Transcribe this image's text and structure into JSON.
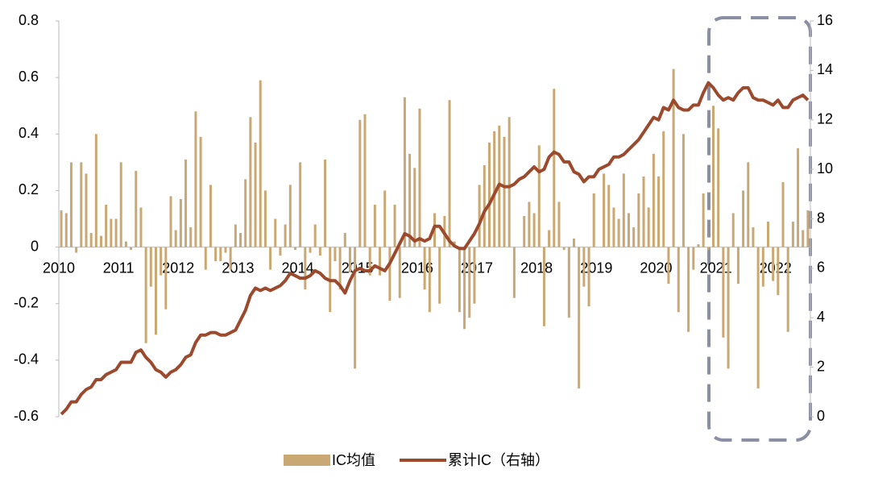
{
  "chart_data": {
    "type": "bar",
    "categories": [
      "2010",
      null,
      null,
      null,
      null,
      null,
      null,
      null,
      null,
      null,
      null,
      null,
      "2011",
      null,
      null,
      null,
      null,
      null,
      null,
      null,
      null,
      null,
      null,
      null,
      "2012",
      null,
      null,
      null,
      null,
      null,
      null,
      null,
      null,
      null,
      null,
      null,
      "2013",
      null,
      null,
      null,
      null,
      null,
      null,
      null,
      null,
      null,
      null,
      null,
      "2014",
      null,
      null,
      null,
      null,
      null,
      null,
      null,
      null,
      null,
      null,
      null,
      "2015",
      null,
      null,
      null,
      null,
      null,
      null,
      null,
      null,
      null,
      null,
      null,
      "2016",
      null,
      null,
      null,
      null,
      null,
      null,
      null,
      null,
      null,
      null,
      null,
      "2017",
      null,
      null,
      null,
      null,
      null,
      null,
      null,
      null,
      null,
      null,
      null,
      "2018",
      null,
      null,
      null,
      null,
      null,
      null,
      null,
      null,
      null,
      null,
      null,
      "2019",
      null,
      null,
      null,
      null,
      null,
      null,
      null,
      null,
      null,
      null,
      null,
      "2020",
      null,
      null,
      null,
      null,
      null,
      null,
      null,
      null,
      null,
      null,
      null,
      "2021",
      null,
      null,
      null,
      null,
      null,
      null,
      null,
      null,
      null,
      null,
      null,
      "2022",
      null,
      null,
      null,
      null,
      null,
      null
    ],
    "series": [
      {
        "name": "IC均值",
        "type": "bar",
        "color": "#c9a873",
        "values": [
          0.13,
          0.12,
          0.3,
          -0.02,
          0.3,
          0.26,
          0.05,
          0.4,
          0.04,
          0.15,
          0.1,
          0.1,
          0.3,
          0.02,
          -0.01,
          0.27,
          0.14,
          -0.34,
          -0.14,
          -0.31,
          -0.1,
          -0.22,
          0.18,
          0.06,
          0.17,
          0.31,
          0.07,
          0.48,
          0.39,
          -0.08,
          0.22,
          -0.05,
          -0.05,
          -0.02,
          -0.08,
          0.08,
          0.05,
          0.24,
          0.46,
          0.37,
          0.59,
          0.2,
          -0.08,
          0.1,
          -0.03,
          0.08,
          0.22,
          -0.01,
          0.3,
          -0.15,
          -0.02,
          0.08,
          -0.03,
          0.31,
          -0.23,
          -0.05,
          -0.15,
          0.05,
          -0.09,
          -0.43,
          0.45,
          0.47,
          -0.1,
          0.15,
          -0.1,
          0.2,
          -0.19,
          0.15,
          -0.18,
          0.53,
          0.33,
          0.28,
          0.49,
          -0.15,
          -0.23,
          0.12,
          -0.2,
          0.11,
          0.52,
          0.02,
          -0.23,
          -0.29,
          -0.25,
          -0.2,
          0.22,
          0.29,
          0.37,
          0.41,
          0.43,
          0.39,
          0.46,
          -0.18,
          0.0,
          0.11,
          0.16,
          0.12,
          0.36,
          -0.28,
          0.06,
          0.56,
          0.16,
          -0.01,
          -0.25,
          0.03,
          -0.5,
          -0.14,
          -0.21,
          0.19,
          0.0,
          0.26,
          0.22,
          0.14,
          0.1,
          0.26,
          0.12,
          0.07,
          0.19,
          0.25,
          0.14,
          0.33,
          0.25,
          0.41,
          -0.13,
          0.63,
          -0.23,
          0.4,
          -0.3,
          -0.08,
          0.01,
          0.19,
          -0.01,
          0.5,
          0.42,
          -0.32,
          -0.43,
          0.12,
          -0.13,
          0.2,
          0.3,
          0.07,
          -0.5,
          -0.14,
          0.09,
          -0.12,
          -0.17,
          0.23,
          -0.3,
          0.09,
          0.35,
          0.06,
          0.13
        ]
      },
      {
        "name": "累计IC（右轴）",
        "type": "line",
        "axis": "y2",
        "color": "#9c4a2e",
        "values": [
          0.1,
          0.3,
          0.6,
          0.6,
          0.9,
          1.1,
          1.2,
          1.5,
          1.5,
          1.7,
          1.8,
          1.9,
          2.2,
          2.2,
          2.2,
          2.6,
          2.7,
          2.4,
          2.2,
          1.9,
          1.8,
          1.6,
          1.8,
          1.9,
          2.1,
          2.4,
          2.5,
          3.0,
          3.3,
          3.3,
          3.4,
          3.4,
          3.3,
          3.3,
          3.4,
          3.5,
          3.9,
          4.3,
          4.9,
          5.2,
          5.1,
          5.2,
          5.1,
          5.2,
          5.3,
          5.5,
          5.8,
          5.7,
          5.6,
          5.6,
          5.7,
          5.9,
          5.8,
          5.6,
          5.5,
          5.5,
          5.3,
          5.0,
          5.5,
          5.9,
          6.0,
          5.9,
          5.9,
          6.1,
          6.0,
          5.9,
          6.2,
          6.6,
          7.0,
          7.4,
          7.3,
          7.1,
          7.2,
          7.1,
          7.2,
          7.7,
          7.7,
          7.4,
          7.1,
          6.9,
          6.8,
          6.8,
          7.1,
          7.4,
          7.8,
          8.3,
          8.6,
          9.0,
          9.4,
          9.3,
          9.3,
          9.4,
          9.6,
          9.7,
          9.9,
          10.1,
          9.9,
          10.0,
          10.5,
          10.7,
          10.6,
          10.3,
          10.3,
          9.9,
          9.8,
          9.5,
          9.7,
          9.7,
          10.0,
          10.1,
          10.2,
          10.5,
          10.5,
          10.6,
          10.8,
          11.0,
          11.2,
          11.5,
          11.8,
          12.1,
          12.0,
          12.5,
          12.4,
          12.8,
          12.5,
          12.4,
          12.4,
          12.6,
          12.6,
          13.1,
          13.5,
          13.3,
          13.0,
          12.8,
          12.9,
          12.8,
          13.1,
          13.3,
          13.3,
          12.9,
          12.8,
          12.8,
          12.7,
          12.6,
          12.8,
          12.5,
          12.5,
          12.8,
          12.9,
          13.0,
          12.8
        ]
      }
    ],
    "ylim": [
      -0.6,
      0.8
    ],
    "yticks": [
      -0.6,
      -0.4,
      -0.2,
      0,
      0.2,
      0.4,
      0.6,
      0.8
    ],
    "y2lim": [
      0,
      16
    ],
    "y2ticks": [
      0,
      2,
      4,
      6,
      8,
      10,
      12,
      14,
      16
    ]
  }
}
